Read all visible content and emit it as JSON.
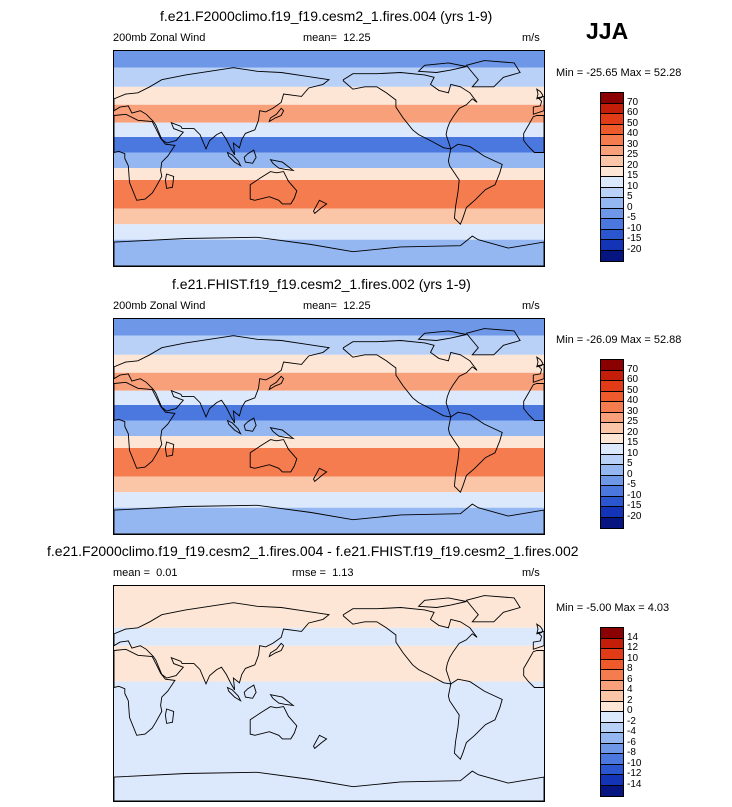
{
  "season": "JJA",
  "chart_data": [
    {
      "type": "heatmap",
      "title": "f.e21.F2000climo.f19_f19.cesm2_1.fires.004 (yrs 1-9)",
      "variable": "200mb Zonal Wind",
      "mean_label": "mean=",
      "mean": "12.25",
      "units": "m/s",
      "min_label": "Min =",
      "min": "-25.65",
      "max_label": "Max =",
      "max": "52.28",
      "levels": [
        "70",
        "60",
        "50",
        "40",
        "30",
        "25",
        "20",
        "15",
        "10",
        "5",
        "0",
        "-5",
        "-10",
        "-15",
        "-20"
      ],
      "colors": [
        "#8b0000",
        "#c41e0a",
        "#e23b17",
        "#ef5a2c",
        "#f47c4f",
        "#f8a07a",
        "#fbc6a8",
        "#fde6d6",
        "#dce8fb",
        "#b9d0f7",
        "#94b6f1",
        "#6e97e8",
        "#4a78de",
        "#2a56cf",
        "#1434b7",
        "#06157f"
      ],
      "bands": [
        {
          "lat_north": 90,
          "lat_south": 76,
          "value": "-5"
        },
        {
          "lat_north": 76,
          "lat_south": 60,
          "value": "5"
        },
        {
          "lat_north": 60,
          "lat_south": 45,
          "value": "15"
        },
        {
          "lat_north": 45,
          "lat_south": 30,
          "value": "25"
        },
        {
          "lat_north": 30,
          "lat_south": 18,
          "value": "10"
        },
        {
          "lat_north": 18,
          "lat_south": 5,
          "value": "-10"
        },
        {
          "lat_north": 5,
          "lat_south": -8,
          "value": "0"
        },
        {
          "lat_north": -8,
          "lat_south": -18,
          "value": "15"
        },
        {
          "lat_north": -18,
          "lat_south": -42,
          "value": "30"
        },
        {
          "lat_north": -42,
          "lat_south": -55,
          "value": "20"
        },
        {
          "lat_north": -55,
          "lat_south": -68,
          "value": "10"
        },
        {
          "lat_north": -68,
          "lat_south": -90,
          "value": "0"
        }
      ],
      "xrange_lon": [
        0,
        360
      ],
      "yrange_lat": [
        -90,
        90
      ]
    },
    {
      "type": "heatmap",
      "title": "f.e21.FHIST.f19_f19.cesm2_1.fires.002 (yrs 1-9)",
      "variable": "200mb Zonal Wind",
      "mean_label": "mean=",
      "mean": "12.25",
      "units": "m/s",
      "min_label": "Min =",
      "min": "-26.09",
      "max_label": "Max =",
      "max": "52.88",
      "levels": [
        "70",
        "60",
        "50",
        "40",
        "30",
        "25",
        "20",
        "15",
        "10",
        "5",
        "0",
        "-5",
        "-10",
        "-15",
        "-20"
      ],
      "colors": [
        "#8b0000",
        "#c41e0a",
        "#e23b17",
        "#ef5a2c",
        "#f47c4f",
        "#f8a07a",
        "#fbc6a8",
        "#fde6d6",
        "#dce8fb",
        "#b9d0f7",
        "#94b6f1",
        "#6e97e8",
        "#4a78de",
        "#2a56cf",
        "#1434b7",
        "#06157f"
      ],
      "bands": [
        {
          "lat_north": 90,
          "lat_south": 76,
          "value": "-5"
        },
        {
          "lat_north": 76,
          "lat_south": 60,
          "value": "5"
        },
        {
          "lat_north": 60,
          "lat_south": 45,
          "value": "15"
        },
        {
          "lat_north": 45,
          "lat_south": 30,
          "value": "25"
        },
        {
          "lat_north": 30,
          "lat_south": 18,
          "value": "10"
        },
        {
          "lat_north": 18,
          "lat_south": 5,
          "value": "-10"
        },
        {
          "lat_north": 5,
          "lat_south": -8,
          "value": "0"
        },
        {
          "lat_north": -8,
          "lat_south": -18,
          "value": "15"
        },
        {
          "lat_north": -18,
          "lat_south": -42,
          "value": "30"
        },
        {
          "lat_north": -42,
          "lat_south": -55,
          "value": "20"
        },
        {
          "lat_north": -55,
          "lat_south": -68,
          "value": "10"
        },
        {
          "lat_north": -68,
          "lat_south": -90,
          "value": "0"
        }
      ],
      "xrange_lon": [
        0,
        360
      ],
      "yrange_lat": [
        -90,
        90
      ]
    },
    {
      "type": "heatmap",
      "title": "f.e21.F2000climo.f19_f19.cesm2_1.fires.004 - f.e21.FHIST.f19_f19.cesm2_1.fires.002",
      "mean_label": "mean =",
      "mean": "0.01",
      "rmse_label": "rmse =",
      "rmse": "1.13",
      "units": "m/s",
      "min_label": "Min =",
      "min": "-5.00",
      "max_label": "Max =",
      "max": "4.03",
      "levels": [
        "14",
        "12",
        "10",
        "8",
        "6",
        "4",
        "2",
        "0",
        "-2",
        "-4",
        "-6",
        "-8",
        "-10",
        "-12",
        "-14"
      ],
      "colors": [
        "#8b0000",
        "#c41e0a",
        "#e23b17",
        "#ef5a2c",
        "#f47c4f",
        "#f8a07a",
        "#fbc6a8",
        "#fde6d6",
        "#dce8fb",
        "#b9d0f7",
        "#94b6f1",
        "#6e97e8",
        "#4a78de",
        "#2a56cf",
        "#1434b7",
        "#06157f"
      ],
      "bands": [
        {
          "lat_north": 90,
          "lat_south": 55,
          "value": "0"
        },
        {
          "lat_north": 55,
          "lat_south": 40,
          "value": "-2"
        },
        {
          "lat_north": 40,
          "lat_south": 10,
          "value": "0"
        },
        {
          "lat_north": 10,
          "lat_south": -10,
          "value": "-2"
        },
        {
          "lat_north": -10,
          "lat_south": -90,
          "value": "-2"
        }
      ],
      "xrange_lon": [
        0,
        360
      ],
      "yrange_lat": [
        -90,
        90
      ]
    }
  ]
}
